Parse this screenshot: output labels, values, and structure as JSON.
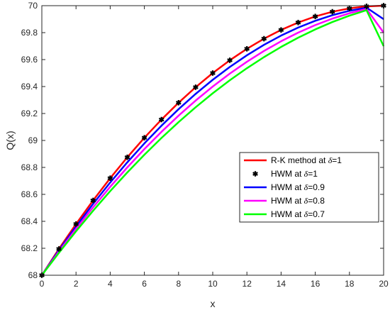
{
  "chart_data": {
    "type": "line",
    "title": "",
    "xlabel": "x",
    "ylabel": "Q(x)",
    "xlim": [
      0,
      20
    ],
    "ylim": [
      68,
      70
    ],
    "xticks": [
      0,
      2,
      4,
      6,
      8,
      10,
      12,
      14,
      16,
      18,
      20
    ],
    "yticks": [
      68,
      68.2,
      68.4,
      68.6,
      68.8,
      69,
      69.2,
      69.4,
      69.6,
      69.8,
      70
    ],
    "ytick_labels": [
      "68",
      "68.2",
      "68.4",
      "68.6",
      "68.8",
      "69",
      "69.2",
      "69.4",
      "69.6",
      "69.8",
      "70"
    ],
    "grid": false,
    "legend_position": "lower-right",
    "x": [
      0,
      1,
      2,
      3,
      4,
      5,
      6,
      7,
      8,
      9,
      10,
      11,
      12,
      13,
      14,
      15,
      16,
      17,
      18,
      19,
      20
    ],
    "series": [
      {
        "name": "R-K method at δ=1",
        "style": "line",
        "color": "#ff0000",
        "values": [
          68.0,
          68.195,
          68.38,
          68.555,
          68.72,
          68.875,
          69.02,
          69.155,
          69.28,
          69.395,
          69.5,
          69.595,
          69.68,
          69.755,
          69.82,
          69.875,
          69.92,
          69.955,
          69.98,
          69.995,
          70.0
        ]
      },
      {
        "name": "HWM at δ=1",
        "style": "markers",
        "color": "#000000",
        "marker": "asterisk",
        "values": [
          68.0,
          68.195,
          68.38,
          68.555,
          68.72,
          68.875,
          69.02,
          69.155,
          69.28,
          69.395,
          69.5,
          69.595,
          69.68,
          69.755,
          69.82,
          69.875,
          69.92,
          69.955,
          69.98,
          69.995,
          70.0
        ]
      },
      {
        "name": "HWM at δ=0.9",
        "style": "line",
        "color": "#0000ff",
        "values": [
          68.0,
          68.1855,
          68.362,
          68.5295,
          68.688,
          68.8375,
          68.978,
          69.1095,
          69.232,
          69.3455,
          69.45,
          69.5455,
          69.632,
          69.7095,
          69.778,
          69.8375,
          69.888,
          69.9295,
          69.962,
          69.9855,
          69.9
        ]
      },
      {
        "name": "HWM at δ=0.8",
        "style": "line",
        "color": "#ff00ff",
        "values": [
          68.0,
          68.176,
          68.344,
          68.504,
          68.656,
          68.8,
          68.936,
          69.064,
          69.184,
          69.296,
          69.4,
          69.496,
          69.584,
          69.664,
          69.736,
          69.8,
          69.856,
          69.904,
          69.944,
          69.976,
          69.8
        ]
      },
      {
        "name": "HWM at δ=0.7",
        "style": "line",
        "color": "#00ff00",
        "values": [
          68.0,
          68.1665,
          68.326,
          68.4785,
          68.624,
          68.7625,
          68.894,
          69.0185,
          69.136,
          69.2465,
          69.35,
          69.4465,
          69.536,
          69.6185,
          69.694,
          69.7625,
          69.824,
          69.8785,
          69.926,
          69.9665,
          69.7
        ]
      }
    ],
    "legend_labels": [
      {
        "prefix": "R-K method at ",
        "value": "=1"
      },
      {
        "prefix": "HWM at ",
        "value": "=1"
      },
      {
        "prefix": "HWM at ",
        "value": "=0.9"
      },
      {
        "prefix": "HWM at ",
        "value": "=0.8"
      },
      {
        "prefix": "HWM at ",
        "value": "=0.7"
      }
    ],
    "delta_symbol": "δ"
  }
}
